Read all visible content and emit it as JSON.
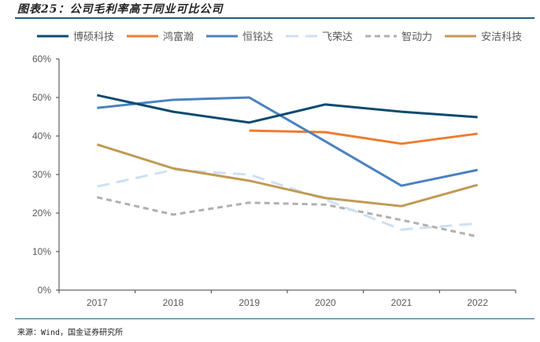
{
  "header": {
    "title": "图表25：公司毛利率高于同业可比公司"
  },
  "footer": {
    "source": "来源：Wind，国金证券研究所"
  },
  "chart_data": {
    "type": "line",
    "title": "图表25：公司毛利率高于同业可比公司",
    "xlabel": "",
    "ylabel": "",
    "categories": [
      "2017",
      "2018",
      "2019",
      "2020",
      "2021",
      "2022"
    ],
    "yticks": [
      "0%",
      "10%",
      "20%",
      "30%",
      "40%",
      "50%",
      "60%"
    ],
    "ylim": [
      0,
      60
    ],
    "grid": false,
    "legend_position": "top",
    "series": [
      {
        "name": "博硕科技",
        "color": "#0b4a6f",
        "dash": "solid",
        "values": [
          50.6,
          46.3,
          43.5,
          48.2,
          46.3,
          44.9
        ]
      },
      {
        "name": "鸿富瀚",
        "color": "#ed7d31",
        "dash": "solid",
        "values": [
          null,
          null,
          41.4,
          41.0,
          38.0,
          40.6
        ]
      },
      {
        "name": "恒铭达",
        "color": "#4a82bf",
        "dash": "solid",
        "values": [
          47.3,
          49.4,
          50.0,
          38.6,
          27.1,
          31.2
        ]
      },
      {
        "name": "飞荣达",
        "color": "#cfe0f1",
        "dash": "longdash",
        "values": [
          26.9,
          31.2,
          30.0,
          23.5,
          15.7,
          17.3
        ]
      },
      {
        "name": "智动力",
        "color": "#b0b0b0",
        "dash": "dash",
        "values": [
          24.1,
          19.6,
          22.7,
          22.2,
          18.2,
          13.9
        ]
      },
      {
        "name": "安洁科技",
        "color": "#c09a55",
        "dash": "solid",
        "values": [
          37.8,
          31.6,
          28.4,
          23.9,
          21.8,
          27.3
        ]
      }
    ]
  }
}
